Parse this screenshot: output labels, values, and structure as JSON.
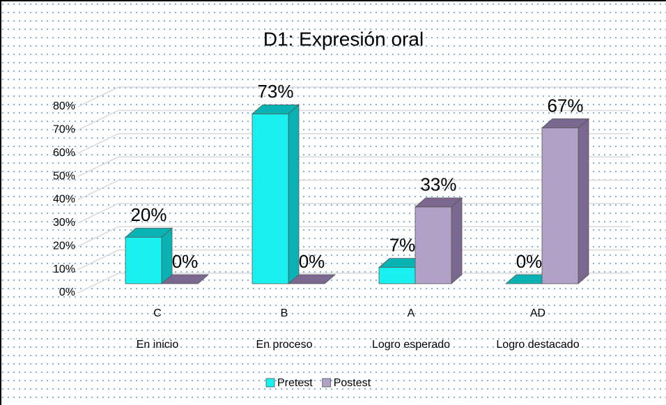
{
  "chart_data": {
    "type": "bar3d",
    "title": "D1: Expresión oral",
    "categories": [
      "C",
      "B",
      "A",
      "AD"
    ],
    "category_labels": [
      "En inicio",
      "En proceso",
      "Logro esperado",
      "Logro destacado"
    ],
    "series": [
      {
        "name": "Pretest",
        "color": "#19f0f0",
        "side_color": "#0ab3b3",
        "values": [
          20,
          73,
          7,
          0
        ],
        "value_labels": [
          "20%",
          "73%",
          "7%",
          "0%"
        ]
      },
      {
        "name": "Postest",
        "color": "#b1a0c8",
        "side_color": "#7a6890",
        "values": [
          0,
          0,
          33,
          67
        ],
        "value_labels": [
          "0%",
          "0%",
          "33%",
          "67%"
        ]
      }
    ],
    "ylim": [
      0,
      80
    ],
    "yticks": [
      {
        "value": 0,
        "label": "0%"
      },
      {
        "value": 10,
        "label": "10%"
      },
      {
        "value": 20,
        "label": "20%"
      },
      {
        "value": 30,
        "label": "30%"
      },
      {
        "value": 40,
        "label": "40%"
      },
      {
        "value": 50,
        "label": "50%"
      },
      {
        "value": 60,
        "label": "60%"
      },
      {
        "value": 70,
        "label": "70%"
      },
      {
        "value": 80,
        "label": "80%"
      }
    ],
    "grid": true,
    "legend": "bottom"
  }
}
